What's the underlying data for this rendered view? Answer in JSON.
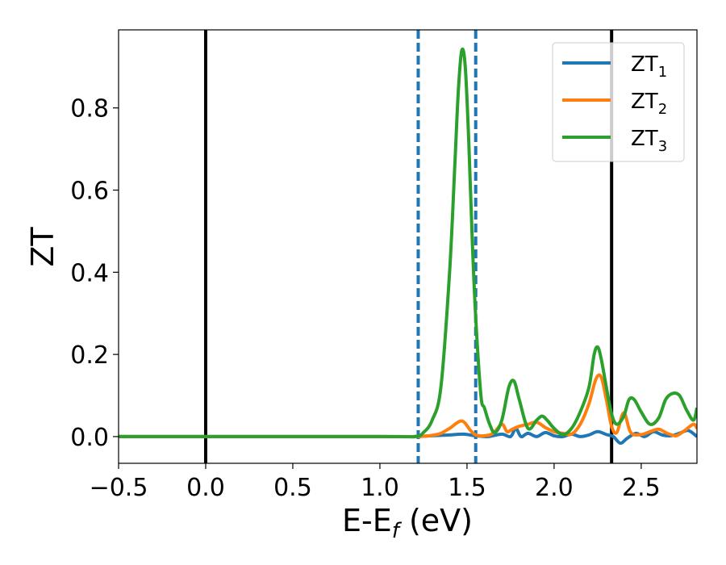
{
  "chart_data": {
    "type": "line",
    "title": "",
    "xlabel": "E-E",
    "xlabel_sub": "f",
    "xlabel_unit": " (eV)",
    "ylabel": "ZT",
    "xlim": [
      -0.5,
      2.82
    ],
    "ylim": [
      -0.065,
      0.99
    ],
    "xticks": [
      -0.5,
      0.0,
      0.5,
      1.0,
      1.5,
      2.0,
      2.5
    ],
    "xtick_labels": [
      "−0.5",
      "0.0",
      "0.5",
      "1.0",
      "1.5",
      "2.0",
      "2.5"
    ],
    "yticks": [
      0.0,
      0.2,
      0.4,
      0.6,
      0.8
    ],
    "ytick_labels": [
      "0.0",
      "0.2",
      "0.4",
      "0.6",
      "0.8"
    ],
    "grid": false,
    "legend_position": "top-right",
    "vlines": [
      {
        "x": 0.0,
        "style": "solid",
        "color": "#000000"
      },
      {
        "x": 2.33,
        "style": "solid",
        "color": "#000000"
      },
      {
        "x": 1.22,
        "style": "dashed",
        "color": "#1f77b4"
      },
      {
        "x": 1.55,
        "style": "dashed",
        "color": "#1f77b4"
      }
    ],
    "series": [
      {
        "name": "ZT",
        "sub": "1",
        "color": "#1f77b4",
        "x": [
          -0.5,
          1.0,
          1.2,
          1.3,
          1.4,
          1.48,
          1.55,
          1.62,
          1.7,
          1.75,
          1.78,
          1.81,
          1.85,
          1.9,
          1.95,
          2.0,
          2.05,
          2.1,
          2.15,
          2.2,
          2.25,
          2.3,
          2.34,
          2.38,
          2.42,
          2.47,
          2.52,
          2.57,
          2.62,
          2.67,
          2.72,
          2.77,
          2.82
        ],
        "y": [
          0.0,
          0.0,
          0.0,
          0.002,
          0.004,
          0.006,
          0.002,
          0.0,
          0.006,
          0.0,
          0.02,
          0.0,
          0.008,
          0.0,
          0.01,
          0.002,
          0.0,
          0.006,
          0.0,
          0.004,
          0.012,
          0.005,
          0.0,
          -0.016,
          -0.004,
          0.008,
          0.0,
          0.012,
          0.004,
          0.002,
          0.008,
          0.015,
          0.0
        ]
      },
      {
        "name": "ZT",
        "sub": "2",
        "color": "#ff7f0e",
        "x": [
          -0.5,
          1.0,
          1.2,
          1.25,
          1.3,
          1.35,
          1.4,
          1.47,
          1.52,
          1.55,
          1.6,
          1.65,
          1.7,
          1.73,
          1.76,
          1.8,
          1.85,
          1.9,
          1.95,
          2.0,
          2.05,
          2.1,
          2.15,
          2.2,
          2.24,
          2.27,
          2.3,
          2.33,
          2.36,
          2.4,
          2.44,
          2.5,
          2.55,
          2.6,
          2.65,
          2.7,
          2.75,
          2.8,
          2.82
        ],
        "y": [
          0.0,
          0.0,
          0.0,
          0.001,
          0.003,
          0.008,
          0.02,
          0.038,
          0.015,
          0.004,
          0.002,
          0.008,
          0.03,
          0.012,
          0.018,
          0.025,
          0.03,
          0.035,
          0.022,
          0.012,
          0.008,
          0.006,
          0.03,
          0.08,
          0.14,
          0.145,
          0.09,
          0.025,
          0.01,
          0.058,
          0.01,
          0.005,
          0.012,
          0.018,
          0.008,
          0.002,
          0.015,
          0.03,
          0.02
        ]
      },
      {
        "name": "ZT",
        "sub": "3",
        "color": "#2ca02c",
        "x": [
          -0.5,
          1.0,
          1.2,
          1.25,
          1.3,
          1.35,
          1.4,
          1.43,
          1.45,
          1.47,
          1.49,
          1.51,
          1.53,
          1.55,
          1.58,
          1.6,
          1.63,
          1.66,
          1.7,
          1.74,
          1.77,
          1.8,
          1.85,
          1.9,
          1.93,
          1.96,
          2.0,
          2.05,
          2.1,
          2.15,
          2.2,
          2.23,
          2.25,
          2.27,
          2.3,
          2.33,
          2.36,
          2.4,
          2.43,
          2.46,
          2.5,
          2.55,
          2.6,
          2.64,
          2.68,
          2.72,
          2.76,
          2.8,
          2.82
        ],
        "y": [
          0.0,
          0.0,
          0.0,
          0.01,
          0.04,
          0.12,
          0.4,
          0.66,
          0.84,
          0.94,
          0.9,
          0.72,
          0.48,
          0.29,
          0.1,
          0.07,
          0.03,
          0.01,
          0.04,
          0.12,
          0.135,
          0.09,
          0.02,
          0.04,
          0.05,
          0.04,
          0.02,
          0.005,
          0.02,
          0.06,
          0.12,
          0.2,
          0.218,
          0.19,
          0.12,
          0.055,
          0.03,
          0.05,
          0.09,
          0.09,
          0.06,
          0.03,
          0.045,
          0.09,
          0.105,
          0.1,
          0.065,
          0.04,
          0.07
        ]
      }
    ]
  }
}
